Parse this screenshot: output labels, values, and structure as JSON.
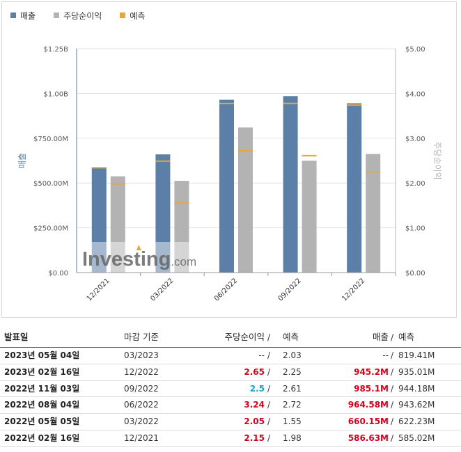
{
  "legend": {
    "revenue": {
      "label": "매출",
      "color": "#5b7fa6"
    },
    "eps": {
      "label": "주당순이익",
      "color": "#b3b3b3"
    },
    "forecast": {
      "label": "예측",
      "color": "#e8a73c"
    }
  },
  "chart_data": {
    "type": "bar",
    "categories": [
      "12/2021",
      "03/2022",
      "06/2022",
      "09/2022",
      "12/2022"
    ],
    "series": [
      {
        "name": "매출",
        "axis": "left",
        "color": "#5b7fa6",
        "values": [
          586630000,
          660150000,
          964580000,
          985100000,
          945200000
        ]
      },
      {
        "name": "주당순이익",
        "axis": "right",
        "color": "#b3b3b3",
        "values": [
          2.15,
          2.05,
          3.24,
          2.5,
          2.65
        ]
      }
    ],
    "forecast": {
      "name": "예측",
      "color": "#e8a73c",
      "revenue": [
        585020000,
        622230000,
        943620000,
        944180000,
        935010000
      ],
      "eps": [
        1.98,
        1.55,
        2.72,
        2.61,
        2.25
      ]
    },
    "ylabel": "매출",
    "y2label": "주당순이익",
    "ylim": [
      0,
      1250000000
    ],
    "y2lim": [
      0,
      5
    ],
    "yticks": [
      "$0.00",
      "$250.00M",
      "$500.00M",
      "$750.00M",
      "$1.00B",
      "$1.25B"
    ],
    "y2ticks": [
      "$0.00",
      "$1.00",
      "$2.00",
      "$3.00",
      "$4.00",
      "$5.00"
    ],
    "grid": true,
    "legend_position": "top-left",
    "watermark": "Investing.com"
  },
  "table": {
    "headers": {
      "date": "발표일",
      "period": "마감 기준",
      "eps": "주당순이익",
      "slash": "/",
      "eps_forecast": "예측",
      "revenue": "매출",
      "revenue_forecast": "예측"
    },
    "rows": [
      {
        "date": "2023년 05월 04일",
        "period": "03/2023",
        "eps": "--",
        "eps_style": "dash",
        "eps_forecast": "2.03",
        "revenue": "--",
        "revenue_style": "dash",
        "revenue_forecast": "819.41M"
      },
      {
        "date": "2023년 02월 16일",
        "period": "12/2022",
        "eps": "2.65",
        "eps_style": "red",
        "eps_forecast": "2.25",
        "revenue": "945.2M",
        "revenue_style": "red",
        "revenue_forecast": "935.01M"
      },
      {
        "date": "2022년 11월 03일",
        "period": "09/2022",
        "eps": "2.5",
        "eps_style": "blue",
        "eps_forecast": "2.61",
        "revenue": "985.1M",
        "revenue_style": "red",
        "revenue_forecast": "944.18M"
      },
      {
        "date": "2022년 08월 04일",
        "period": "06/2022",
        "eps": "3.24",
        "eps_style": "red",
        "eps_forecast": "2.72",
        "revenue": "964.58M",
        "revenue_style": "red",
        "revenue_forecast": "943.62M"
      },
      {
        "date": "2022년 05월 05일",
        "period": "03/2022",
        "eps": "2.05",
        "eps_style": "red",
        "eps_forecast": "1.55",
        "revenue": "660.15M",
        "revenue_style": "red",
        "revenue_forecast": "622.23M"
      },
      {
        "date": "2022년 02월 16일",
        "period": "12/2021",
        "eps": "2.15",
        "eps_style": "red",
        "eps_forecast": "1.98",
        "revenue": "586.63M",
        "revenue_style": "red",
        "revenue_forecast": "585.02M"
      }
    ]
  }
}
